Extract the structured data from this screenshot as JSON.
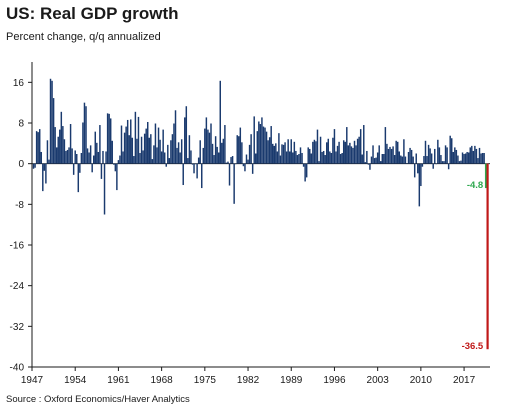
{
  "header": {
    "title": "US: Real GDP growth",
    "subtitle": "Percent change, q/q annualized"
  },
  "footer": {
    "source": "Source : Oxford Economics/Haver Analytics"
  },
  "colors": {
    "bars": "#1a3a6e",
    "positive_highlight": "#2fa84f",
    "negative_highlight": "#c01818",
    "axis": "#1a1a1a"
  },
  "chart_data": {
    "type": "bar",
    "title": "US: Real GDP growth",
    "subtitle": "Percent change, q/q annualized",
    "xlabel": "",
    "ylabel": "",
    "ylim": [
      -40,
      20
    ],
    "y_ticks": [
      16,
      8,
      0,
      -8,
      -16,
      -24,
      -32,
      -40
    ],
    "x_ticks": [
      "1947",
      "1954",
      "1961",
      "1968",
      "1975",
      "1982",
      "1989",
      "1996",
      "2003",
      "2010",
      "2017"
    ],
    "x_start": 1947.25,
    "x_step": 0.25,
    "grid": false,
    "series": [
      {
        "name": "",
        "values": [
          -1,
          -0.8,
          6.4,
          6.2,
          6.8,
          2.3,
          -5.4,
          -1.4,
          -3.9,
          4.6,
          0.8,
          16.7,
          16.3,
          12.9,
          7.2,
          3.2,
          5.3,
          6.7,
          10.2,
          7.4,
          4.8,
          2.5,
          2.7,
          3.2,
          7.8,
          3,
          -2.2,
          2.6,
          1.9,
          -5.6,
          -1.8,
          2.1,
          8.1,
          12,
          11.3,
          3,
          2.2,
          3.6,
          -1.7,
          1.6,
          6.3,
          4.1,
          2.3,
          7.6,
          -3,
          2.5,
          -10,
          2.4,
          9.9,
          9.8,
          8.9,
          4.5,
          -0.2,
          -1.5,
          -5.2,
          0.7,
          1.6,
          7.5,
          2.4,
          6.1,
          7.3,
          8.6,
          5.6,
          8.7,
          5.1,
          1.5,
          10.2,
          4.9,
          9.2,
          2.1,
          5.3,
          2.6,
          5.9,
          6.9,
          8.2,
          5.1,
          5.8,
          0.9,
          3.6,
          7.9,
          3.2,
          7.1,
          4.7,
          2.4,
          6.7,
          2.2,
          -0.6,
          3.7,
          1.1,
          4.6,
          5.8,
          7.9,
          10.5,
          3.1,
          4.2,
          2.2,
          4.8,
          -4.2,
          9.1,
          11.3,
          1.1,
          5.6,
          2.6,
          -0.2,
          -1.9,
          -0.1,
          -2.9,
          1.2,
          4.6,
          -4.8,
          3.1,
          6.9,
          9.1,
          6.7,
          6.1,
          7.9,
          3.9,
          1.7,
          5.4,
          3.3,
          2.2,
          16.3,
          4.1,
          4.9,
          7.6,
          0.2,
          0.4,
          -4.3,
          1.3,
          1.5,
          -7.9,
          -0.1,
          5.6,
          5.4,
          7.1,
          4.2,
          -0.5,
          -1.5,
          1.8,
          0.8,
          3.7,
          5.8,
          -2,
          9.3,
          2,
          6.4,
          8.3,
          7.8,
          9.1,
          7.3,
          7.1,
          6.3,
          4.6,
          5.2,
          7.4,
          3.9,
          3.5,
          4,
          2.4,
          6,
          1.6,
          3.8,
          3.7,
          4.2,
          2.4,
          4.8,
          2.4,
          4.8,
          2.2,
          4.3,
          2.5,
          1.7,
          1.9,
          3.2,
          2.1,
          -0.6,
          -3.5,
          -2.7,
          3.2,
          2.9,
          2,
          4.3,
          4.7,
          4.4,
          6.7,
          0.5,
          5.3,
          2.3,
          2.5,
          1.7,
          4.2,
          4.9,
          2.4,
          2.1,
          5.1,
          6.8,
          2.4,
          3.5,
          4.3,
          1.9,
          2.1,
          4.6,
          4.3,
          7.2,
          3.6,
          4.1,
          3.4,
          3.1,
          4.5,
          3.6,
          4.9,
          5.3,
          6.8,
          1.8,
          7.6,
          0.3,
          2.5,
          -0.2,
          -1.2,
          1.4,
          3.6,
          1.1,
          1.2,
          2.2,
          3.6,
          0.5,
          1.9,
          1.9,
          7.2,
          3.9,
          2.9,
          3.3,
          2.9,
          3.4,
          1.7,
          4.5,
          4.3,
          2.4,
          1.6,
          1.4,
          4.8,
          1.4,
          0.1,
          2.3,
          3.1,
          2.7,
          1.4,
          -2.7,
          2,
          -1.9,
          -8.4,
          -4.4,
          -0.6,
          1.5,
          4.5,
          1.5,
          3.7,
          3,
          2,
          -1,
          2.9,
          -0.1,
          4.7,
          3.2,
          1.7,
          0.5,
          0.5,
          3.6,
          3.2,
          -1.1,
          5.5,
          5,
          2.3,
          3.2,
          2.7,
          1.6,
          0.5,
          0.6,
          2.2,
          1.9,
          2,
          2.3,
          2.2,
          3.2,
          3.5,
          2.5,
          3.5,
          2.9,
          1.1,
          3.1,
          2,
          2.1,
          2.1,
          -4.8,
          -36.5
        ]
      }
    ],
    "annotations": [
      {
        "label": "-4.8",
        "value": -4.8,
        "color": "positive_highlight"
      },
      {
        "label": "-36.5",
        "value": -36.5,
        "color": "negative_highlight"
      }
    ]
  }
}
